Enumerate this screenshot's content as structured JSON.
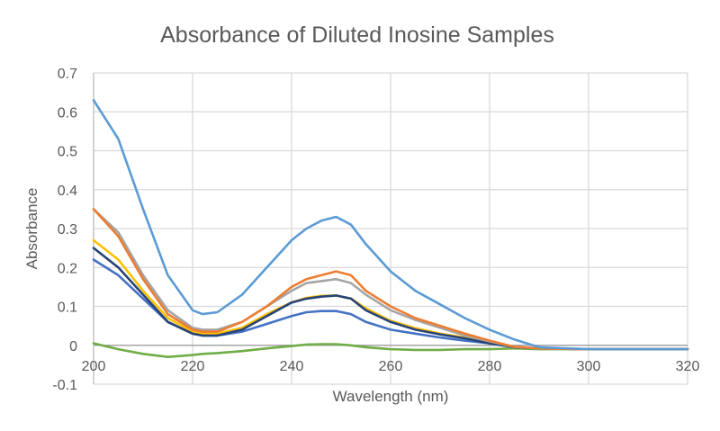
{
  "chart_data": {
    "type": "line",
    "title": "Absorbance of Diluted Inosine Samples",
    "xlabel": "Wavelength (nm)",
    "ylabel": "Absorbance",
    "xlim": [
      200,
      320
    ],
    "ylim": [
      -0.1,
      0.7
    ],
    "xticks": [
      200,
      220,
      240,
      260,
      280,
      300,
      320
    ],
    "yticks": [
      -0.1,
      0,
      0.1,
      0.2,
      0.3,
      0.4,
      0.5,
      0.6,
      0.7
    ],
    "ytick_labels": [
      "-0.1",
      "0",
      "0.1",
      "0.2",
      "0.3",
      "0.4",
      "0.5",
      "0.6",
      "0.7"
    ],
    "grid": true,
    "legend": "none",
    "x": [
      200,
      205,
      210,
      215,
      220,
      222,
      225,
      230,
      235,
      240,
      243,
      246,
      249,
      252,
      255,
      260,
      265,
      270,
      275,
      280,
      285,
      290,
      300,
      310,
      320
    ],
    "series": [
      {
        "color": "#70AD47",
        "values": [
          0.005,
          -0.01,
          -0.022,
          -0.03,
          -0.025,
          -0.022,
          -0.02,
          -0.015,
          -0.008,
          -0.002,
          0.002,
          0.003,
          0.003,
          0,
          -0.005,
          -0.01,
          -0.012,
          -0.012,
          -0.01,
          -0.01,
          -0.008,
          -0.01,
          -0.01,
          -0.01,
          -0.01
        ]
      },
      {
        "color": "#4472C4",
        "values": [
          0.22,
          0.18,
          0.12,
          0.06,
          0.03,
          0.025,
          0.025,
          0.035,
          0.055,
          0.075,
          0.085,
          0.088,
          0.088,
          0.08,
          0.06,
          0.04,
          0.03,
          0.02,
          0.012,
          0.005,
          -0.005,
          -0.008,
          -0.01,
          -0.01,
          -0.01
        ]
      },
      {
        "color": "#FFC000",
        "values": [
          0.27,
          0.22,
          0.14,
          0.07,
          0.035,
          0.03,
          0.03,
          0.045,
          0.08,
          0.11,
          0.122,
          0.127,
          0.128,
          0.12,
          0.095,
          0.063,
          0.044,
          0.03,
          0.02,
          0.006,
          -0.004,
          -0.008,
          -0.01,
          -0.01,
          -0.01
        ]
      },
      {
        "color": "#264478",
        "values": [
          0.25,
          0.2,
          0.13,
          0.06,
          0.03,
          0.025,
          0.025,
          0.04,
          0.075,
          0.11,
          0.12,
          0.125,
          0.128,
          0.12,
          0.09,
          0.06,
          0.04,
          0.028,
          0.018,
          0.005,
          -0.005,
          -0.008,
          -0.01,
          -0.01,
          -0.01
        ]
      },
      {
        "color": "#A5A5A5",
        "values": [
          0.35,
          0.29,
          0.18,
          0.09,
          0.045,
          0.04,
          0.04,
          0.06,
          0.1,
          0.14,
          0.16,
          0.165,
          0.17,
          0.16,
          0.13,
          0.09,
          0.065,
          0.045,
          0.025,
          0.01,
          -0.004,
          -0.008,
          -0.01,
          -0.01,
          -0.01
        ]
      },
      {
        "color": "#ED7D31",
        "values": [
          0.35,
          0.28,
          0.17,
          0.08,
          0.04,
          0.035,
          0.035,
          0.06,
          0.1,
          0.15,
          0.17,
          0.18,
          0.19,
          0.18,
          0.14,
          0.1,
          0.07,
          0.05,
          0.03,
          0.012,
          -0.004,
          -0.008,
          -0.01,
          -0.01,
          -0.01
        ]
      },
      {
        "color": "#5B9BD5",
        "values": [
          0.63,
          0.53,
          0.35,
          0.18,
          0.09,
          0.08,
          0.085,
          0.13,
          0.2,
          0.27,
          0.3,
          0.32,
          0.33,
          0.31,
          0.26,
          0.19,
          0.14,
          0.105,
          0.07,
          0.04,
          0.015,
          -0.005,
          -0.01,
          -0.01,
          -0.01
        ]
      }
    ]
  }
}
